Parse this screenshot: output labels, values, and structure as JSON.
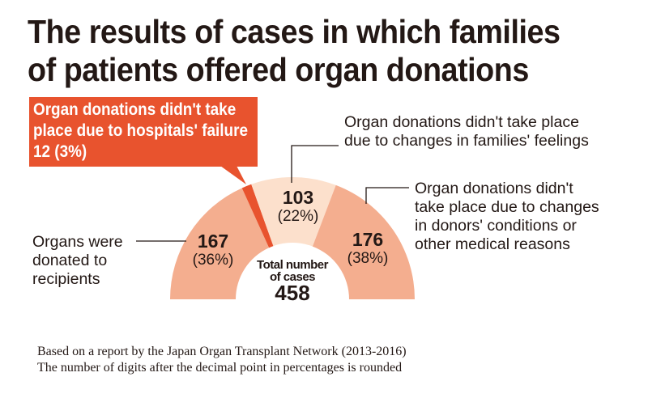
{
  "chart_data": {
    "type": "pie",
    "variant": "half-donut",
    "title": "The results of cases in which families of patients offered organ donations",
    "title_lines": [
      "The results of cases in which families",
      "of patients offered organ donations"
    ],
    "slices": [
      {
        "label": "Organs were donated to recipients",
        "label_lines": [
          "Organs were",
          "donated to",
          "recipients"
        ],
        "value": 167,
        "value_text": "167",
        "percent_text": "(36%)",
        "color": "#f4ae8f"
      },
      {
        "label": "Organ donations didn't take place due to hospitals' failure",
        "label_lines": [
          "Organ donations didn't take",
          "place due to hospitals' failure",
          "12 (3%)"
        ],
        "value": 12,
        "value_text": "12",
        "percent_text": "(3%)",
        "color": "#e8532e"
      },
      {
        "label": "Organ donations didn't take place due to changes in families' feelings",
        "label_lines": [
          "Organ donations didn't take place",
          "due to changes in families' feelings"
        ],
        "value": 103,
        "value_text": "103",
        "percent_text": "(22%)",
        "color": "#fce0cc"
      },
      {
        "label": "Organ donations didn't take place due to changes in donors' conditions or other medical reasons",
        "label_lines": [
          "Organ donations didn't",
          "take place due to changes",
          "in donors' conditions or",
          "other medical reasons"
        ],
        "value": 176,
        "value_text": "176",
        "percent_text": "(38%)",
        "color": "#f4ae8f"
      }
    ],
    "center_label": [
      "Total number",
      "of cases"
    ],
    "total": "458",
    "notes": [
      "Based on a report by the Japan Organ Transplant Network (2013-2016)",
      "The number of digits after the decimal point in percentages is rounded"
    ]
  }
}
